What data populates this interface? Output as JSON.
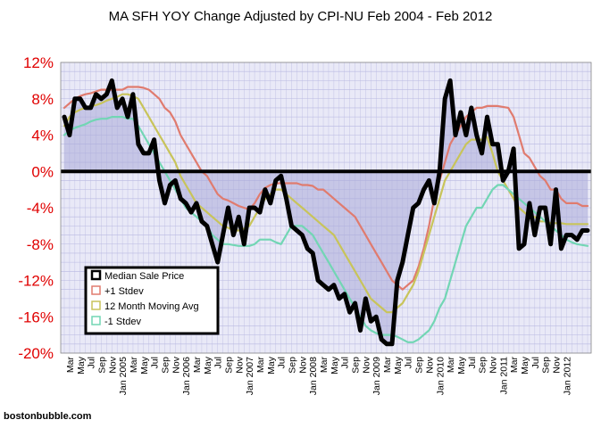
{
  "chart_data": {
    "type": "line",
    "title": "MA SFH YOY Change Adjusted by CPI-NU Feb 2004 - Feb 2012",
    "xlabel": "",
    "ylabel": "",
    "ylim": [
      -20,
      12
    ],
    "y_ticks": [
      "12%",
      "8%",
      "4%",
      "0%",
      "-4%",
      "-8%",
      "-12%",
      "-16%",
      "-20%"
    ],
    "y_tick_values": [
      12,
      8,
      4,
      0,
      -4,
      -8,
      -12,
      -16,
      -20
    ],
    "grid": true,
    "legend_position": "bottom-left",
    "x_tick_labels": [
      "Mar",
      "May",
      "Jul",
      "Sep",
      "Nov",
      "Jan 2005",
      "Mar",
      "May",
      "Jul",
      "Sep",
      "Nov",
      "Jan 2006",
      "Mar",
      "May",
      "Jul",
      "Sep",
      "Nov",
      "Jan 2007",
      "Mar",
      "May",
      "Jul",
      "Sep",
      "Nov",
      "Jan 2008",
      "Mar",
      "May",
      "Jul",
      "Sep",
      "Nov",
      "Jan 2009",
      "Mar",
      "May",
      "Jul",
      "Sep",
      "Nov",
      "Jan 2010",
      "Mar",
      "May",
      "Jul",
      "Sep",
      "Nov",
      "Jan 2011",
      "Mar",
      "May",
      "Jul",
      "Sep",
      "Nov",
      "Jan 2012"
    ],
    "x_tick_index_step": 2,
    "zero_line": 0,
    "series": [
      {
        "name": "Median Sale Price",
        "color": "#000000",
        "values": [
          6,
          4,
          8,
          8,
          7,
          7,
          8.5,
          8,
          8.5,
          10,
          7,
          8,
          6,
          8.5,
          3,
          2,
          2,
          3.5,
          -1,
          -3.5,
          -1.5,
          -1,
          -3,
          -3.5,
          -4.5,
          -3.5,
          -5.5,
          -6,
          -8,
          -10,
          -7,
          -4,
          -7,
          -5,
          -8,
          -4,
          -4,
          -4.5,
          -2,
          -3.5,
          -1,
          -0.5,
          -3,
          -6,
          -6.5,
          -7,
          -8.5,
          -9,
          -12,
          -12.5,
          -13,
          -12.5,
          -14,
          -13.5,
          -15.5,
          -14.5,
          -17.5,
          -14,
          -16.5,
          -16,
          -18.5,
          -19,
          -19,
          -12,
          -10,
          -7,
          -4,
          -3.5,
          -2,
          -1,
          -3.5,
          0,
          8,
          10,
          4,
          6.5,
          4,
          7,
          4,
          2,
          6,
          3,
          3,
          -1,
          0,
          2.5,
          -8.5,
          -8,
          -3.5,
          -7,
          -4,
          -4,
          -8,
          -2,
          -8.5,
          -7,
          -7,
          -7.5,
          -6.5,
          -6.5
        ]
      },
      {
        "name": "+1 Stdev",
        "color": "#e07b6e",
        "values": [
          7,
          7.5,
          8,
          8.3,
          8.5,
          8.6,
          8.8,
          9,
          9,
          9,
          9,
          9,
          9.3,
          9.3,
          9.3,
          9.2,
          9,
          8.5,
          8,
          7,
          6.5,
          5.5,
          4,
          3,
          2,
          1,
          0,
          -0.5,
          -1.5,
          -2.5,
          -3,
          -3.2,
          -3.5,
          -3.8,
          -4,
          -4.2,
          -3.5,
          -2.5,
          -1.8,
          -1.5,
          -1.3,
          -1.3,
          -1.3,
          -1.3,
          -1.3,
          -1.5,
          -1.5,
          -1.6,
          -2,
          -2,
          -2.5,
          -3,
          -3.5,
          -4,
          -4.5,
          -5,
          -6,
          -7,
          -8,
          -9,
          -10,
          -11,
          -12,
          -12.5,
          -13,
          -12.5,
          -12,
          -10.5,
          -8.5,
          -6,
          -3,
          -1,
          1,
          3,
          4,
          5,
          6,
          6.5,
          7,
          7,
          7.2,
          7.2,
          7.2,
          7.1,
          7,
          6,
          4,
          2,
          1.5,
          0.5,
          -0.5,
          -1,
          -2,
          -2,
          -3,
          -3.5,
          -3.5,
          -3.5,
          -3.8,
          -3.8
        ]
      },
      {
        "name": "12 Month Moving Avg",
        "color": "#c8c45a",
        "values": [
          5,
          6,
          6.5,
          6.8,
          7,
          7.2,
          7.3,
          7.5,
          7.8,
          8,
          8.2,
          8.5,
          8.5,
          8.3,
          8,
          7,
          6,
          5,
          4,
          3,
          2,
          1,
          -0.5,
          -1.5,
          -2.5,
          -3.5,
          -4,
          -4.5,
          -5,
          -5.5,
          -6,
          -6.2,
          -6.5,
          -6.5,
          -6.3,
          -6,
          -5,
          -4,
          -3,
          -2.5,
          -2,
          -2,
          -2.5,
          -3,
          -3.5,
          -4,
          -4.5,
          -5,
          -5.5,
          -6,
          -6.5,
          -7,
          -8,
          -9,
          -10,
          -11,
          -12,
          -13,
          -14,
          -14.5,
          -15,
          -15.5,
          -15.5,
          -15,
          -14.5,
          -13.5,
          -12.5,
          -11,
          -9,
          -7,
          -5,
          -3,
          -1,
          0,
          1,
          2,
          3,
          3.5,
          3.5,
          3.5,
          3.8,
          2,
          0,
          -1,
          -2,
          -3,
          -4,
          -4.5,
          -5,
          -5,
          -5.5,
          -5.5,
          -5.7,
          -5.7,
          -5.7,
          -5.8,
          -5.8,
          -5.8,
          -5.8,
          -5.8
        ]
      },
      {
        "name": "-1 Stdev",
        "color": "#72d6b4",
        "values": [
          4,
          4.5,
          4.8,
          5,
          5.2,
          5.5,
          5.7,
          5.8,
          5.8,
          6,
          6,
          6,
          5.8,
          5.8,
          5,
          4,
          3,
          2,
          1,
          0,
          -1,
          -2,
          -3,
          -4,
          -4.5,
          -5,
          -5.5,
          -6,
          -7,
          -7.5,
          -8,
          -8,
          -8.1,
          -8.2,
          -8.2,
          -8.2,
          -8,
          -7.5,
          -7.5,
          -7.5,
          -7.8,
          -8,
          -7,
          -6,
          -6,
          -6,
          -6.5,
          -7,
          -8,
          -9,
          -10,
          -11,
          -12,
          -13,
          -14,
          -15,
          -16,
          -17,
          -17.5,
          -17.8,
          -18,
          -18,
          -18,
          -18.2,
          -18.5,
          -18.8,
          -18.8,
          -18.5,
          -18,
          -17.5,
          -16.5,
          -15,
          -14,
          -12,
          -10,
          -8,
          -6,
          -5,
          -4,
          -4,
          -3,
          -2,
          -1.5,
          -1.5,
          -2,
          -2.5,
          -3,
          -3.5,
          -4,
          -4.5,
          -5,
          -5.5,
          -6,
          -6.5,
          -7,
          -7.5,
          -7.8,
          -8,
          -8.1,
          -8.2
        ]
      }
    ]
  },
  "credit": "bostonbubble.com"
}
